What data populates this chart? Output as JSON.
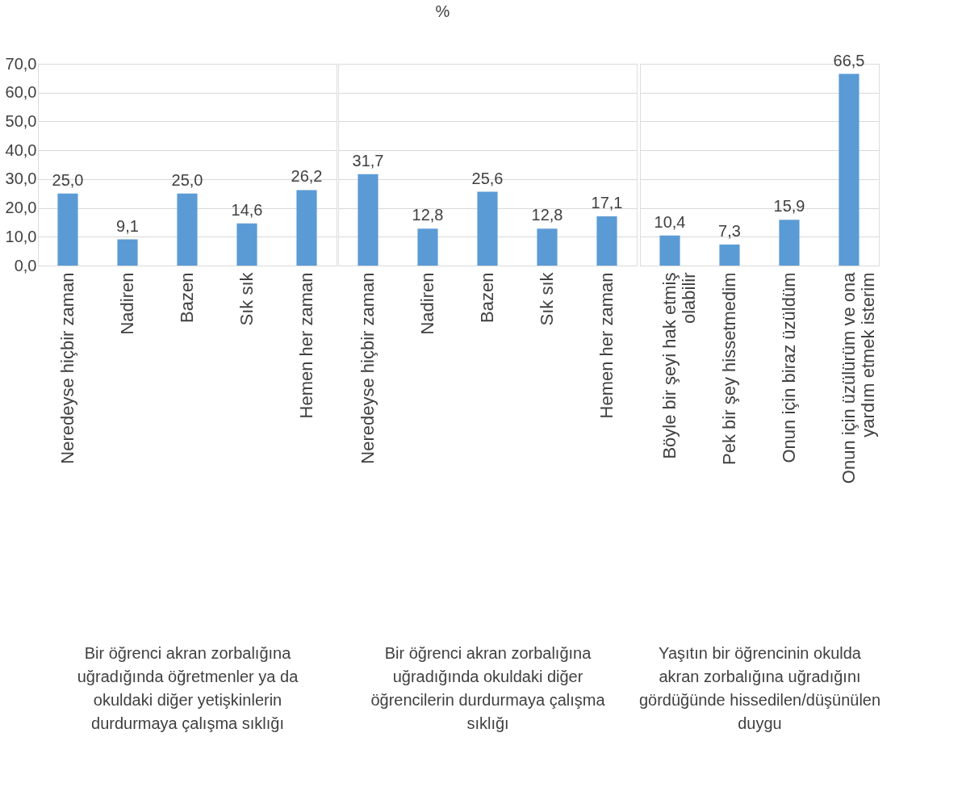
{
  "chart_data": [
    {
      "type": "bar",
      "xlabel": "Bir öğrenci akran zorbalığına uğradığında öğretmenler ya da okuldaki diğer yetişkinlerin durdurmaya çalışma sıklığı",
      "categories": [
        "Neredeyse hiçbir zaman",
        "Nadiren",
        "Bazen",
        "Sık sık",
        "Hemen her zaman"
      ],
      "values": [
        25.0,
        9.1,
        25.0,
        14.6,
        26.2
      ],
      "value_labels": [
        "25,0",
        "9,1",
        "25,0",
        "14,6",
        "26,2"
      ],
      "color": "#5b9bd5",
      "ylim": [
        0,
        70
      ],
      "yticks": [
        {
          "value": 0,
          "label": "0,0"
        },
        {
          "value": 10,
          "label": "10,0"
        },
        {
          "value": 20,
          "label": "20,0"
        },
        {
          "value": 30,
          "label": "30,0"
        },
        {
          "value": 40,
          "label": "40,0"
        },
        {
          "value": 50,
          "label": "50,0"
        },
        {
          "value": 60,
          "label": "60,0"
        },
        {
          "value": 70,
          "label": "70,0"
        }
      ],
      "grid": "y"
    },
    {
      "type": "bar",
      "title": "%",
      "xlabel": "Bir öğrenci akran zorbalığına uğradığında okuldaki diğer öğrencilerin durdurmaya çalışma sıklığı",
      "categories": [
        "Neredeyse hiçbir zaman",
        "Nadiren",
        "Bazen",
        "Sık sık",
        "Hemen her zaman"
      ],
      "values": [
        31.7,
        12.8,
        25.6,
        12.8,
        17.1
      ],
      "value_labels": [
        "31,7",
        "12,8",
        "25,6",
        "12,8",
        "17,1"
      ],
      "color": "#5b9bd5",
      "ylim": [
        0,
        70
      ],
      "yticks": [
        0,
        10,
        20,
        30,
        40,
        50,
        60,
        70
      ],
      "grid": "y",
      "tick_labels": "x"
    },
    {
      "type": "bar",
      "xlabel": "Yaşıtın bir öğrencinin okulda akran zorbalığına uğradığını gördüğünde hissedilen/düşünülen duygu",
      "categories": [
        "Böyle bir şeyi hak etmiş olabilir",
        "Pek bir şey hissetmedim",
        "Onun için biraz üzüldüm",
        "Onun için üzülürüm ve ona yardım etmek isterim"
      ],
      "values": [
        10.4,
        7.3,
        15.9,
        66.5
      ],
      "value_labels": [
        "10,4",
        "7,3",
        "15,9",
        "66,5"
      ],
      "color": "#5b9bd5",
      "ylim": [
        0,
        70
      ],
      "yticks": [
        0,
        10,
        20,
        30,
        40,
        50,
        60,
        70
      ],
      "grid": "y",
      "tick_labels": "x"
    }
  ]
}
